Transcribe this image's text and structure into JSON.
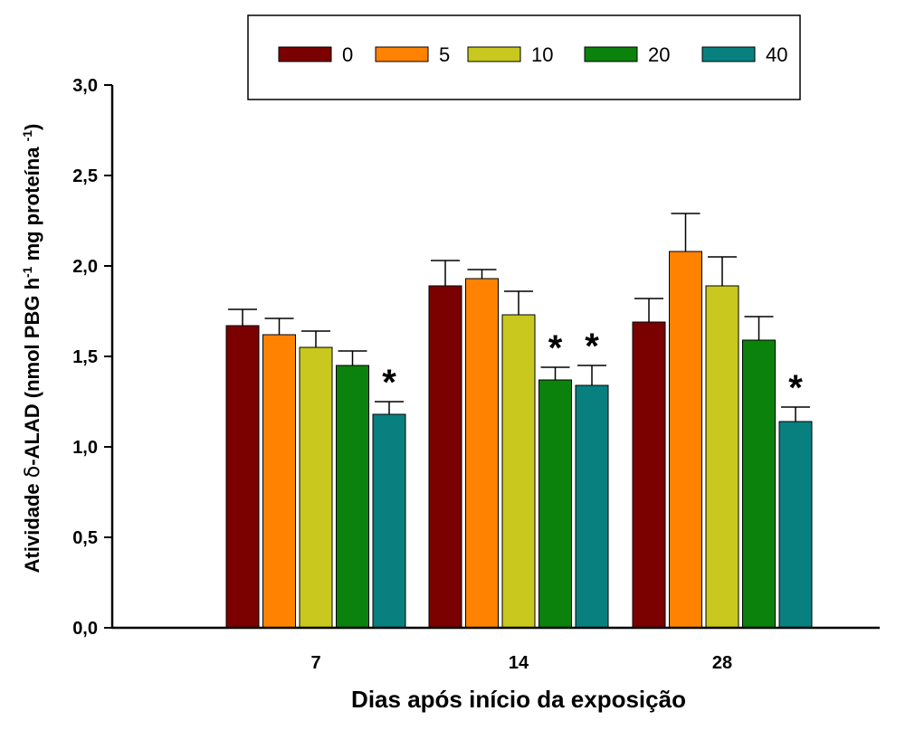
{
  "chart_data": {
    "type": "bar",
    "categories": [
      "7",
      "14",
      "28"
    ],
    "series": [
      {
        "name": "0",
        "color": "#7B0000",
        "values": [
          1.67,
          1.89,
          1.69
        ],
        "errors": [
          0.09,
          0.14,
          0.13
        ]
      },
      {
        "name": "5",
        "color": "#FF8200",
        "values": [
          1.62,
          1.93,
          2.08
        ],
        "errors": [
          0.09,
          0.05,
          0.21
        ]
      },
      {
        "name": "10",
        "color": "#C8C81E",
        "values": [
          1.55,
          1.73,
          1.89
        ],
        "errors": [
          0.09,
          0.13,
          0.16
        ]
      },
      {
        "name": "20",
        "color": "#0B820B",
        "values": [
          1.45,
          1.37,
          1.59
        ],
        "errors": [
          0.08,
          0.07,
          0.13
        ]
      },
      {
        "name": "40",
        "color": "#088080",
        "values": [
          1.18,
          1.34,
          1.14
        ],
        "errors": [
          0.07,
          0.11,
          0.08
        ]
      }
    ],
    "significance": [
      {
        "series": 4,
        "category": 0,
        "mark": "*"
      },
      {
        "series": 3,
        "category": 1,
        "mark": "*"
      },
      {
        "series": 4,
        "category": 1,
        "mark": "*"
      },
      {
        "series": 4,
        "category": 2,
        "mark": "*"
      }
    ],
    "title": "",
    "xlabel": "Dias após início da exposição",
    "ylabel_parts": [
      "Atividade ",
      "δ",
      "-ALAD (nmol PBG h",
      "-1",
      " mg proteína ",
      "-1",
      ")"
    ],
    "ylim": [
      0,
      3.0
    ],
    "yticks": [
      "0,0",
      "0,5",
      "1,0",
      "1,5",
      "2,0",
      "2,5",
      "3,0"
    ],
    "grid": false,
    "legend_position": "top-center"
  }
}
